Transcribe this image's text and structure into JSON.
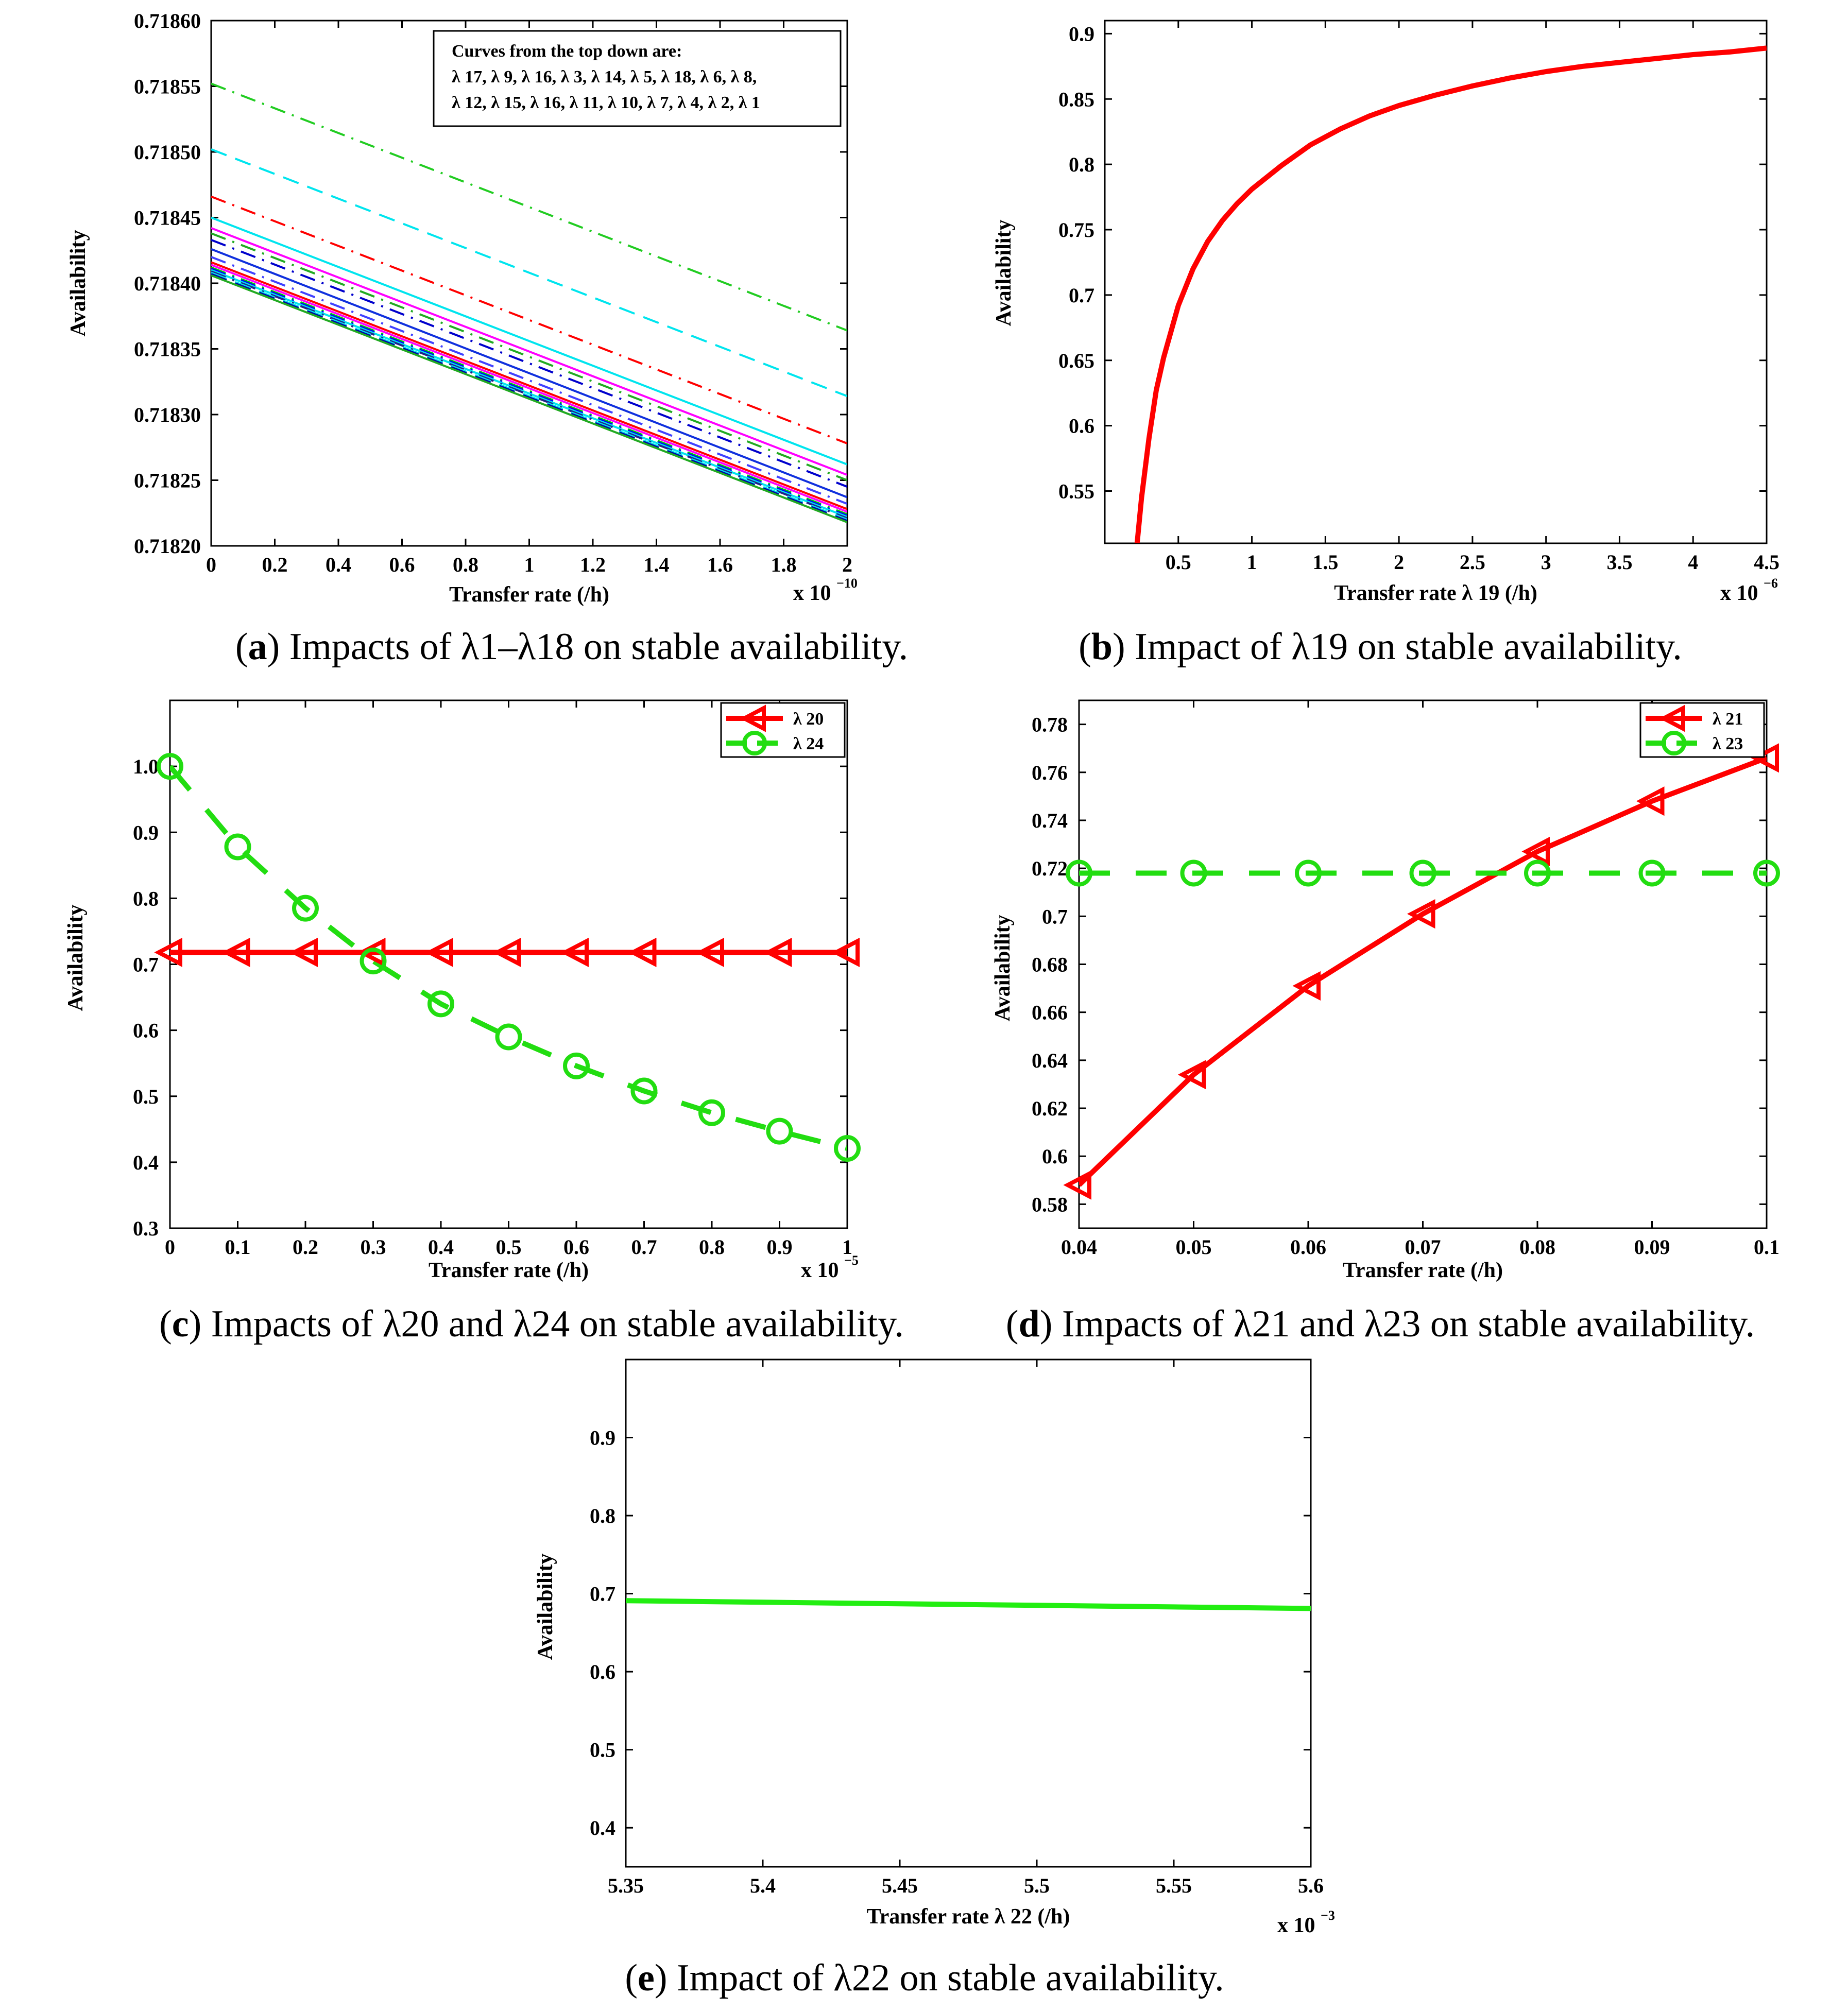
{
  "chart_data": [
    {
      "id": "a",
      "type": "line",
      "caption_letter": "a",
      "caption_text": "Impacts of λ1–λ18 on stable availability.",
      "xlabel": "Transfer rate (/h)",
      "ylabel": "Availability",
      "xexp": "x 10",
      "xexp_sup": "−10",
      "xlim": [
        0,
        2
      ],
      "ylim": [
        0.7182,
        0.7186
      ],
      "xticks": [
        "0",
        "0.2",
        "0.4",
        "0.6",
        "0.8",
        "1",
        "1.2",
        "1.4",
        "1.6",
        "1.8",
        "2"
      ],
      "yticks": [
        "0.71820",
        "0.71825",
        "0.71830",
        "0.71835",
        "0.71840",
        "0.71845",
        "0.71850",
        "0.71855",
        "0.71860"
      ],
      "annotation": [
        "Curves from the top down are:",
        "λ 17, λ 9, λ 16, λ 3, λ 14, λ 5, λ 18, λ 6, λ 8,",
        "λ 12, λ 15, λ 16, λ 11, λ 10, λ 7, λ 4, λ 2, λ 1"
      ],
      "series": [
        {
          "name": "λ 17",
          "x": [
            0,
            2
          ],
          "y": [
            0.718552,
            0.718364
          ],
          "color": "#22cc22",
          "dash": "dashdot"
        },
        {
          "name": "λ 9",
          "x": [
            0,
            2
          ],
          "y": [
            0.718502,
            0.718314
          ],
          "color": "#00e5ee",
          "dash": "dash"
        },
        {
          "name": "λ 16",
          "x": [
            0,
            2
          ],
          "y": [
            0.718466,
            0.718278
          ],
          "color": "#ff0000",
          "dash": "dashdot"
        },
        {
          "name": "λ 3",
          "x": [
            0,
            2
          ],
          "y": [
            0.71845,
            0.718262
          ],
          "color": "#00e5ee",
          "dash": "solid"
        },
        {
          "name": "λ 14",
          "x": [
            0,
            2
          ],
          "y": [
            0.718442,
            0.718254
          ],
          "color": "#ff00ff",
          "dash": "solid"
        },
        {
          "name": "λ 5",
          "x": [
            0,
            2
          ],
          "y": [
            0.718438,
            0.71825
          ],
          "color": "#22aa22",
          "dash": "dashdot"
        },
        {
          "name": "λ 18",
          "x": [
            0,
            2
          ],
          "y": [
            0.718433,
            0.718245
          ],
          "color": "#0000cc",
          "dash": "dashdot"
        },
        {
          "name": "λ 6",
          "x": [
            0,
            2
          ],
          "y": [
            0.718426,
            0.718237
          ],
          "color": "#1030dd",
          "dash": "solid"
        },
        {
          "name": "λ 8",
          "x": [
            0,
            2
          ],
          "y": [
            0.71842,
            0.718232
          ],
          "color": "#4040ff",
          "dash": "dashdot"
        },
        {
          "name": "λ 12",
          "x": [
            0,
            2
          ],
          "y": [
            0.718416,
            0.718228
          ],
          "color": "#ff0000",
          "dash": "solid"
        },
        {
          "name": "λ 15",
          "x": [
            0,
            2
          ],
          "y": [
            0.718414,
            0.718226
          ],
          "color": "#ff00ff",
          "dash": "solid"
        },
        {
          "name": "λ 16",
          "x": [
            0,
            2
          ],
          "y": [
            0.718412,
            0.718224
          ],
          "color": "#00cc00",
          "dash": "dashdot"
        },
        {
          "name": "λ 11",
          "x": [
            0,
            2
          ],
          "y": [
            0.718411,
            0.718223
          ],
          "color": "#0000ff",
          "dash": "dashdot"
        },
        {
          "name": "λ 10",
          "x": [
            0,
            2
          ],
          "y": [
            0.71841,
            0.718222
          ],
          "color": "#00e5ee",
          "dash": "solid"
        },
        {
          "name": "λ 7",
          "x": [
            0,
            2
          ],
          "y": [
            0.718409,
            0.718221
          ],
          "color": "#222288",
          "dash": "dashdot"
        },
        {
          "name": "λ 4",
          "x": [
            0,
            2
          ],
          "y": [
            0.718408,
            0.71822
          ],
          "color": "#00e5ee",
          "dash": "dash"
        },
        {
          "name": "λ 2",
          "x": [
            0,
            2
          ],
          "y": [
            0.718407,
            0.718219
          ],
          "color": "#0000aa",
          "dash": "dash"
        },
        {
          "name": "λ 1",
          "x": [
            0,
            2
          ],
          "y": [
            0.718406,
            0.718218
          ],
          "color": "#22aa22",
          "dash": "solid"
        }
      ]
    },
    {
      "id": "b",
      "type": "line",
      "caption_letter": "b",
      "caption_text": "Impact of λ19 on stable availability.",
      "xlabel": "Transfer rate λ 19 (/h)",
      "ylabel": "Availability",
      "xexp": "x 10",
      "xexp_sup": "−6",
      "xlim": [
        0,
        4.5
      ],
      "ylim": [
        0.51,
        0.91
      ],
      "xticks": [
        "0.5",
        "1",
        "1.5",
        "2",
        "2.5",
        "3",
        "3.5",
        "4",
        "4.5"
      ],
      "yticks": [
        "0.55",
        "0.6",
        "0.65",
        "0.7",
        "0.75",
        "0.8",
        "0.85",
        "0.9"
      ],
      "series": [
        {
          "name": "λ 19",
          "color": "#ff0000",
          "dash": "solid",
          "x": [
            0.22,
            0.25,
            0.3,
            0.35,
            0.4,
            0.5,
            0.6,
            0.7,
            0.8,
            0.9,
            1.0,
            1.2,
            1.4,
            1.6,
            1.8,
            2.0,
            2.25,
            2.5,
            2.75,
            3.0,
            3.25,
            3.5,
            3.75,
            4.0,
            4.25,
            4.5
          ],
          "y": [
            0.51,
            0.545,
            0.59,
            0.627,
            0.652,
            0.692,
            0.72,
            0.741,
            0.757,
            0.77,
            0.781,
            0.799,
            0.815,
            0.827,
            0.837,
            0.845,
            0.853,
            0.86,
            0.866,
            0.871,
            0.875,
            0.878,
            0.881,
            0.884,
            0.886,
            0.889
          ]
        }
      ]
    },
    {
      "id": "c",
      "type": "line",
      "caption_letter": "c",
      "caption_text": "Impacts of λ20 and λ24 on stable availability.",
      "xlabel": "Transfer rate (/h)",
      "ylabel": "Availability",
      "xexp": "x 10",
      "xexp_sup": "−5",
      "xlim": [
        0,
        1
      ],
      "ylim": [
        0.3,
        1.1
      ],
      "xticks": [
        "0",
        "0.1",
        "0.2",
        "0.3",
        "0.4",
        "0.5",
        "0.6",
        "0.7",
        "0.8",
        "0.9",
        "1"
      ],
      "yticks": [
        "0.3",
        "0.4",
        "0.5",
        "0.6",
        "0.7",
        "0.8",
        "0.9",
        "1.0"
      ],
      "series": [
        {
          "name": "λ 20",
          "color": "#ff0000",
          "dash": "solid",
          "marker": "triangle-left",
          "x": [
            0,
            0.1,
            0.2,
            0.3,
            0.4,
            0.5,
            0.6,
            0.7,
            0.8,
            0.9,
            1.0
          ],
          "y": [
            0.718,
            0.718,
            0.718,
            0.718,
            0.718,
            0.718,
            0.718,
            0.718,
            0.718,
            0.718,
            0.718
          ]
        },
        {
          "name": "λ 24",
          "color": "#22dd11",
          "dash": "dash",
          "marker": "circle",
          "x": [
            0,
            0.1,
            0.2,
            0.3,
            0.4,
            0.5,
            0.6,
            0.7,
            0.8,
            0.9,
            1.0
          ],
          "y": [
            1.0,
            0.878,
            0.785,
            0.705,
            0.64,
            0.59,
            0.546,
            0.508,
            0.475,
            0.447,
            0.421
          ]
        }
      ]
    },
    {
      "id": "d",
      "type": "line",
      "caption_letter": "d",
      "caption_text": "Impacts of λ21 and λ23 on stable availability.",
      "xlabel": "Transfer rate (/h)",
      "ylabel": "Availability",
      "xlim": [
        0.04,
        0.1
      ],
      "ylim": [
        0.57,
        0.79
      ],
      "xticks": [
        "0.04",
        "0.05",
        "0.06",
        "0.07",
        "0.08",
        "0.09",
        "0.1"
      ],
      "yticks": [
        "0.58",
        "0.6",
        "0.62",
        "0.64",
        "0.66",
        "0.68",
        "0.7",
        "0.72",
        "0.74",
        "0.76",
        "0.78"
      ],
      "series": [
        {
          "name": "λ 21",
          "color": "#ff0000",
          "dash": "solid",
          "marker": "triangle-left",
          "x": [
            0.04,
            0.05,
            0.06,
            0.07,
            0.08,
            0.09,
            0.1
          ],
          "y": [
            0.588,
            0.634,
            0.671,
            0.701,
            0.727,
            0.748,
            0.766
          ]
        },
        {
          "name": "λ 23",
          "color": "#22dd11",
          "dash": "dash",
          "marker": "circle",
          "x": [
            0.04,
            0.05,
            0.06,
            0.07,
            0.08,
            0.09,
            0.1
          ],
          "y": [
            0.718,
            0.718,
            0.718,
            0.718,
            0.718,
            0.718,
            0.718
          ]
        }
      ]
    },
    {
      "id": "e",
      "type": "line",
      "caption_letter": "e",
      "caption_text": "Impact of λ22 on stable availability.",
      "xlabel": "Transfer rate λ 22 (/h)",
      "ylabel": "Availability",
      "xexp": "x 10",
      "xexp_sup": "−3",
      "xlim": [
        5.35,
        5.6
      ],
      "ylim": [
        0.35,
        1.0
      ],
      "xticks": [
        "5.35",
        "5.4",
        "5.45",
        "5.5",
        "5.55",
        "5.6"
      ],
      "yticks": [
        "0.4",
        "0.5",
        "0.6",
        "0.7",
        "0.8",
        "0.9"
      ],
      "series": [
        {
          "name": "λ 22",
          "color": "#22ee11",
          "dash": "solid",
          "x": [
            5.35,
            5.4,
            5.45,
            5.5,
            5.55,
            5.6
          ],
          "y": [
            0.691,
            0.689,
            0.687,
            0.685,
            0.683,
            0.681
          ]
        }
      ]
    }
  ]
}
